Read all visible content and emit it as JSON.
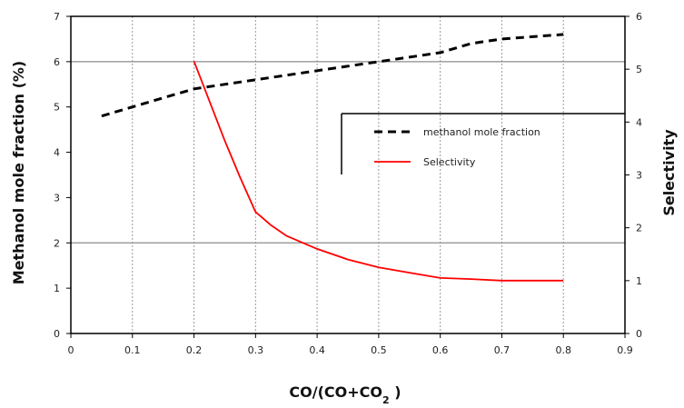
{
  "chart_data": {
    "type": "line",
    "xlabel": "CO/(CO+CO",
    "xlabel_sub": "2",
    "xlabel_tail": " )",
    "ylabel_left": "Methanol mole fraction (%)",
    "ylabel_right": "Selectivity",
    "xlim": [
      0,
      0.9
    ],
    "ylim_left": [
      0,
      7
    ],
    "ylim_right": [
      0,
      6
    ],
    "x_ticks": [
      "0",
      "0.1",
      "0.2",
      "0.3",
      "0.4",
      "0.5",
      "0.6",
      "0.7",
      "0.8",
      "0.9"
    ],
    "y_left_ticks": [
      "0",
      "1",
      "2",
      "3",
      "4",
      "5",
      "6",
      "7"
    ],
    "y_right_ticks": [
      "0",
      "1",
      "2",
      "3",
      "4",
      "5",
      "6"
    ],
    "grid": {
      "vertical_dashed": [
        0.1,
        0.2,
        0.3,
        0.4,
        0.5,
        0.6,
        0.7,
        0.8
      ],
      "horizontal_solid_left": [
        2,
        6
      ]
    },
    "legend_position": "upper-right",
    "series": [
      {
        "name": "methanol mole fraction",
        "axis": "left",
        "style": "dashed",
        "color": "#000000",
        "x": [
          0.05,
          0.1,
          0.15,
          0.2,
          0.25,
          0.3,
          0.35,
          0.4,
          0.45,
          0.5,
          0.55,
          0.6,
          0.65,
          0.7,
          0.75,
          0.8
        ],
        "y": [
          4.8,
          5.0,
          5.2,
          5.4,
          5.5,
          5.6,
          5.7,
          5.8,
          5.9,
          6.0,
          6.1,
          6.2,
          6.4,
          6.5,
          6.55,
          6.6
        ]
      },
      {
        "name": "Selectivity",
        "axis": "right",
        "style": "solid",
        "color": "#ff0000",
        "x": [
          0.2,
          0.225,
          0.25,
          0.275,
          0.3,
          0.325,
          0.35,
          0.4,
          0.45,
          0.5,
          0.55,
          0.6,
          0.65,
          0.7,
          0.75,
          0.8
        ],
        "y": [
          5.15,
          4.4,
          3.65,
          2.95,
          2.3,
          2.05,
          1.85,
          1.6,
          1.4,
          1.25,
          1.15,
          1.05,
          1.03,
          1.0,
          1.0,
          1.0
        ]
      }
    ]
  }
}
